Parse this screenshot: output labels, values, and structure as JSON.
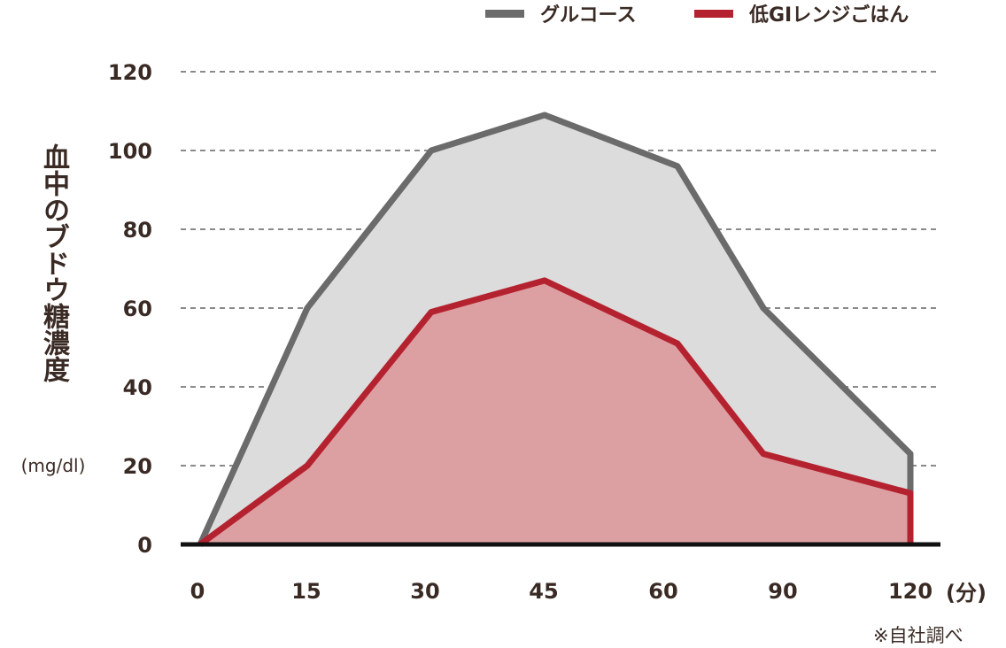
{
  "chart_data": {
    "type": "area",
    "title": "",
    "ylabel": "血中のブドウ糖濃度",
    "yunit": "(mg/dl)",
    "xunit": "(分)",
    "note": "※自社調べ",
    "categories": [
      "0",
      "15",
      "30",
      "45",
      "60",
      "90",
      "120"
    ],
    "yticks": [
      "0",
      "20",
      "40",
      "60",
      "80",
      "100",
      "120"
    ],
    "ylim": [
      0,
      120
    ],
    "grid": true,
    "legend_position": "top-right",
    "series": [
      {
        "name": "グルコース",
        "color": "#6b6b6b",
        "fill": "#dcdcdc",
        "x": [
          0,
          15,
          30,
          45,
          60,
          90,
          120
        ],
        "values": [
          0,
          60,
          100,
          109,
          96,
          60,
          23
        ]
      },
      {
        "name": "低GIレンジごはん",
        "color": "#b5222f",
        "fill": "#dca0a3",
        "x": [
          0,
          15,
          30,
          45,
          60,
          90,
          120
        ],
        "values": [
          0,
          20,
          59,
          67,
          51,
          23,
          13
        ]
      }
    ]
  }
}
